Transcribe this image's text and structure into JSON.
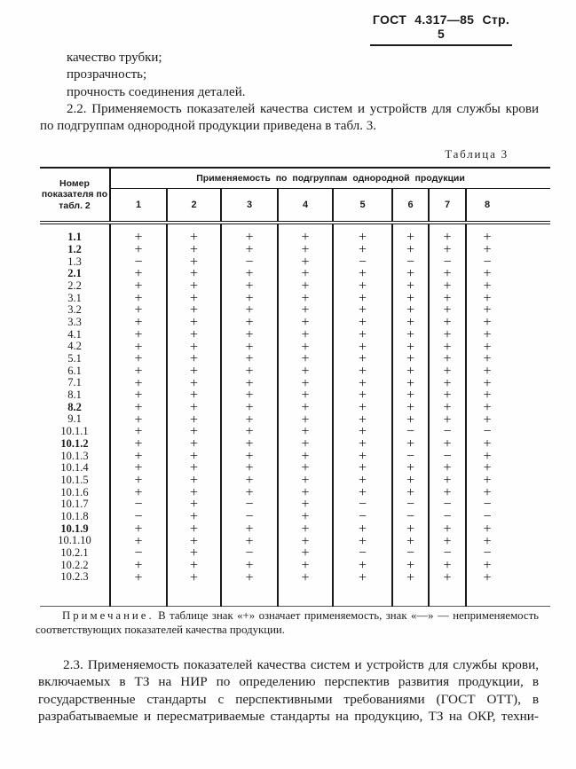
{
  "header": {
    "title": "ГОСТ 4.317—85 Стр. 5"
  },
  "intro": {
    "list_items": [
      "качество трубки;",
      "прозрачность;",
      "прочность соединения деталей."
    ],
    "para_2_2": "2.2. Применяемость показателей качества систем и устройств для службы крови по подгруппам однородной продукции приведена в табл. 3."
  },
  "table": {
    "caption": "Таблица 3",
    "corner_header": "Номер показателя по табл. 2",
    "span_header": "Применяемость по подгруппам однородной продукции",
    "columns": [
      "1",
      "2",
      "3",
      "4",
      "5",
      "6",
      "7",
      "8"
    ],
    "plus_means": "применяемость",
    "minus_means": "неприменяемость",
    "rows": [
      {
        "label": "1.1",
        "bold": true,
        "signs": [
          "+",
          "+",
          "+",
          "+",
          "+",
          "+",
          "+",
          "+"
        ]
      },
      {
        "label": "1.2",
        "bold": true,
        "signs": [
          "+",
          "+",
          "+",
          "+",
          "+",
          "+",
          "+",
          "+"
        ]
      },
      {
        "label": "1.3",
        "bold": false,
        "signs": [
          "−",
          "+",
          "−",
          "+",
          "−",
          "−",
          "−",
          "−"
        ]
      },
      {
        "label": "2.1",
        "bold": true,
        "signs": [
          "+",
          "+",
          "+",
          "+",
          "+",
          "+",
          "+",
          "+"
        ]
      },
      {
        "label": "2.2",
        "bold": false,
        "signs": [
          "+",
          "+",
          "+",
          "+",
          "+",
          "+",
          "+",
          "+"
        ]
      },
      {
        "label": "3.1",
        "bold": false,
        "signs": [
          "+",
          "+",
          "+",
          "+",
          "+",
          "+",
          "+",
          "+"
        ]
      },
      {
        "label": "3.2",
        "bold": false,
        "signs": [
          "+",
          "+",
          "+",
          "+",
          "+",
          "+",
          "+",
          "+"
        ]
      },
      {
        "label": "3.3",
        "bold": false,
        "signs": [
          "+",
          "+",
          "+",
          "+",
          "+",
          "+",
          "+",
          "+"
        ]
      },
      {
        "label": "4.1",
        "bold": false,
        "signs": [
          "+",
          "+",
          "+",
          "+",
          "+",
          "+",
          "+",
          "+"
        ]
      },
      {
        "label": "4.2",
        "bold": false,
        "signs": [
          "+",
          "+",
          "+",
          "+",
          "+",
          "+",
          "+",
          "+"
        ]
      },
      {
        "label": "5.1",
        "bold": false,
        "signs": [
          "+",
          "+",
          "+",
          "+",
          "+",
          "+",
          "+",
          "+"
        ]
      },
      {
        "label": "6.1",
        "bold": false,
        "signs": [
          "+",
          "+",
          "+",
          "+",
          "+",
          "+",
          "+",
          "+"
        ]
      },
      {
        "label": "7.1",
        "bold": false,
        "signs": [
          "+",
          "+",
          "+",
          "+",
          "+",
          "+",
          "+",
          "+"
        ]
      },
      {
        "label": "8.1",
        "bold": false,
        "signs": [
          "+",
          "+",
          "+",
          "+",
          "+",
          "+",
          "+",
          "+"
        ]
      },
      {
        "label": "8.2",
        "bold": true,
        "signs": [
          "+",
          "+",
          "+",
          "+",
          "+",
          "+",
          "+",
          "+"
        ]
      },
      {
        "label": "9.1",
        "bold": false,
        "signs": [
          "+",
          "+",
          "+",
          "+",
          "+",
          "+",
          "+",
          "+"
        ]
      },
      {
        "label": "10.1.1",
        "bold": false,
        "signs": [
          "+",
          "+",
          "+",
          "+",
          "+",
          "−",
          "−",
          "−"
        ]
      },
      {
        "label": "10.1.2",
        "bold": true,
        "signs": [
          "+",
          "+",
          "+",
          "+",
          "+",
          "+",
          "+",
          "+"
        ]
      },
      {
        "label": "10.1.3",
        "bold": false,
        "signs": [
          "+",
          "+",
          "+",
          "+",
          "+",
          "−",
          "−",
          "+"
        ]
      },
      {
        "label": "10.1.4",
        "bold": false,
        "signs": [
          "+",
          "+",
          "+",
          "+",
          "+",
          "+",
          "+",
          "+"
        ]
      },
      {
        "label": "10.1.5",
        "bold": false,
        "signs": [
          "+",
          "+",
          "+",
          "+",
          "+",
          "+",
          "+",
          "+"
        ]
      },
      {
        "label": "10.1.6",
        "bold": false,
        "signs": [
          "+",
          "+",
          "+",
          "+",
          "+",
          "+",
          "+",
          "+"
        ]
      },
      {
        "label": "10.1.7",
        "bold": false,
        "signs": [
          "−",
          "+",
          "−",
          "+",
          "−",
          "−",
          "−",
          "−"
        ]
      },
      {
        "label": "10.1.8",
        "bold": false,
        "signs": [
          "−",
          "+",
          "−",
          "+",
          "−",
          "−",
          "−",
          "−"
        ]
      },
      {
        "label": "10.1.9",
        "bold": true,
        "signs": [
          "+",
          "+",
          "+",
          "+",
          "+",
          "+",
          "+",
          "+"
        ]
      },
      {
        "label": "10.1.10",
        "bold": false,
        "signs": [
          "+",
          "+",
          "+",
          "+",
          "+",
          "+",
          "+",
          "+"
        ]
      },
      {
        "label": "10.2.1",
        "bold": false,
        "signs": [
          "−",
          "+",
          "−",
          "+",
          "−",
          "−",
          "−",
          "−"
        ]
      },
      {
        "label": "10.2.2",
        "bold": false,
        "signs": [
          "+",
          "+",
          "+",
          "+",
          "+",
          "+",
          "+",
          "+"
        ]
      },
      {
        "label": "10.2.3",
        "bold": false,
        "signs": [
          "+",
          "+",
          "+",
          "+",
          "+",
          "+",
          "+",
          "+"
        ]
      }
    ]
  },
  "note": {
    "label": "Примечание.",
    "text": "В таблице знак «+» означает применяемость, знак «—» — неприменяемость соответствующих показателей качества продукции."
  },
  "para_2_3": "2.3. Применяемость показателей качества систем и устройств для службы крови, включаемых в ТЗ на НИР по определению перспектив развития продукции, в государственные стандарты с перспективными требованиями (ГОСТ ОТТ), в разрабатываемые и пересматриваемые стандарты на продукцию, ТЗ на ОКР, техни-"
}
